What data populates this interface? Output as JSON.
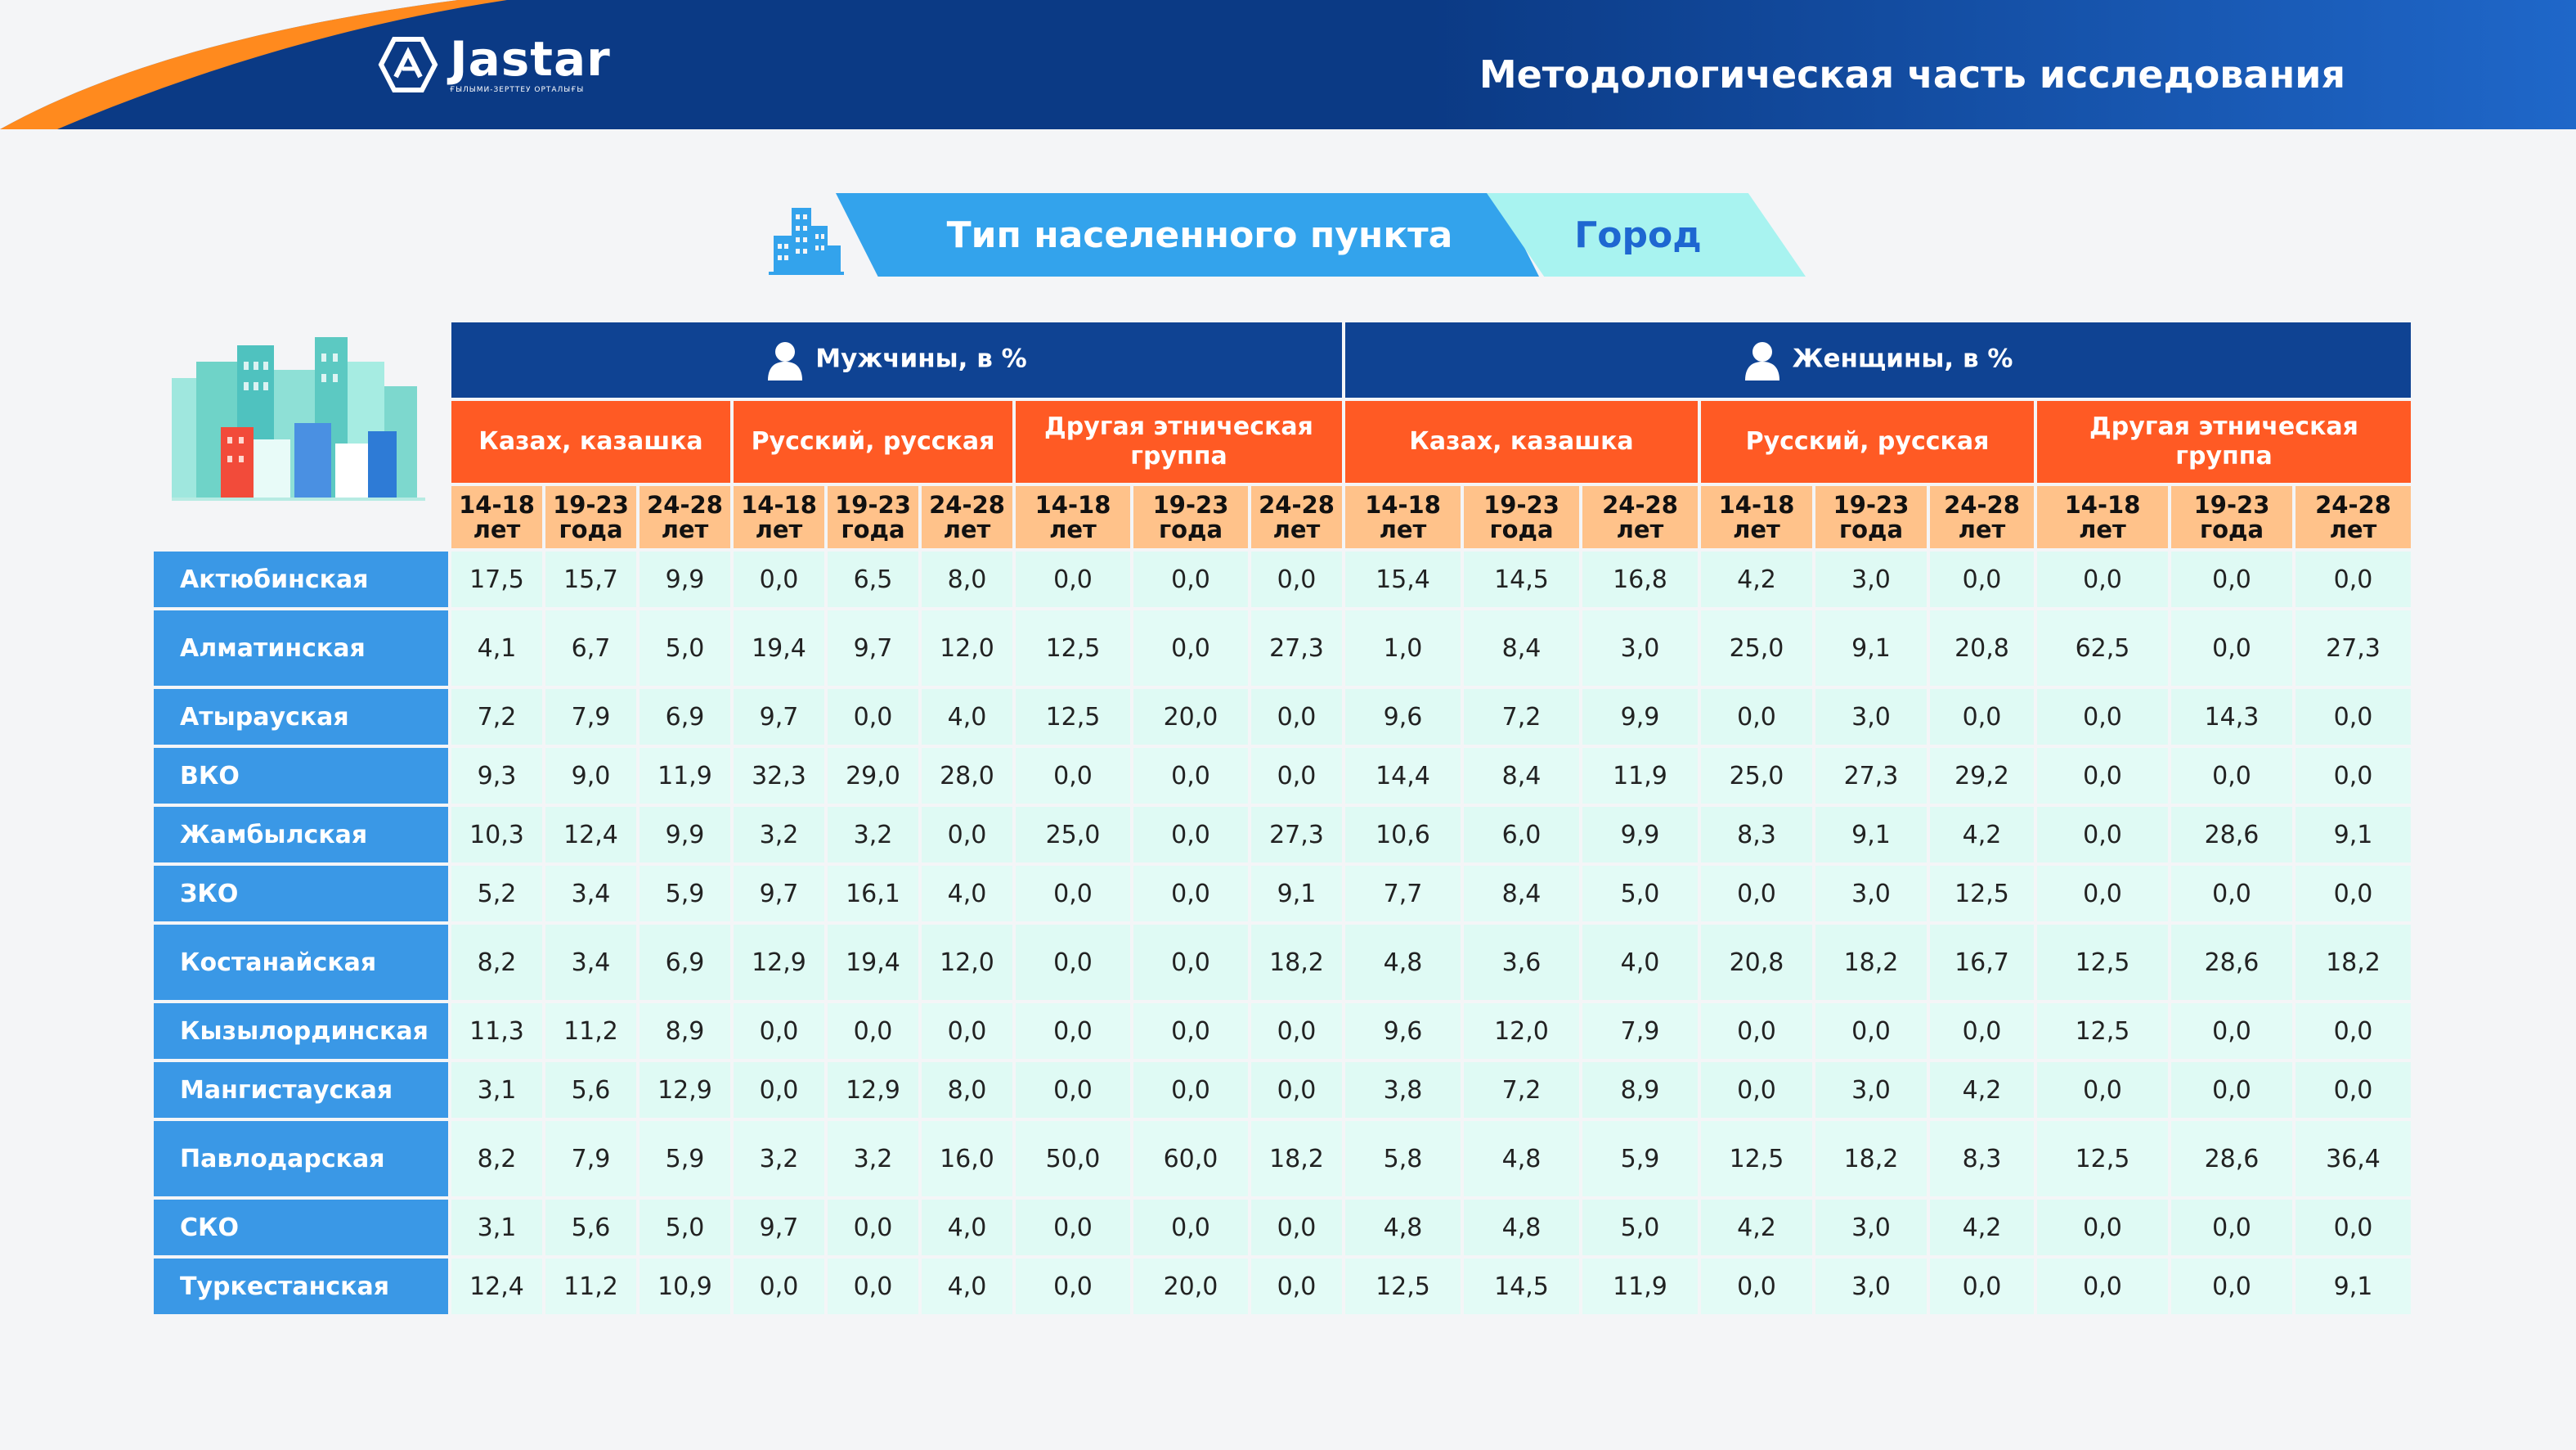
{
  "header": {
    "logo": "Jastar",
    "logo_sub": "ҒЫЛЫМИ-ЗЕРТТЕУ ОРТАЛЫҒЫ",
    "title": "Методологическая часть исследования"
  },
  "banner": {
    "label": "Тип населенного пункта",
    "value": "Город"
  },
  "table": {
    "genders": [
      "Мужчины, в %",
      "Женщины, в %"
    ],
    "ethnic_groups": [
      "Казах, казашка",
      "Русский, русская",
      "Другая этническая группа"
    ],
    "age_groups": [
      "14-18 лет",
      "19-23 года",
      "24-28 лет"
    ],
    "rows": [
      {
        "region": "Актюбинская",
        "values": [
          "17,5",
          "15,7",
          "9,9",
          "0,0",
          "6,5",
          "8,0",
          "0,0",
          "0,0",
          "0,0",
          "15,4",
          "14,5",
          "16,8",
          "4,2",
          "3,0",
          "0,0",
          "0,0",
          "0,0",
          "0,0"
        ]
      },
      {
        "region": "Алматинская",
        "values": [
          "4,1",
          "6,7",
          "5,0",
          "19,4",
          "9,7",
          "12,0",
          "12,5",
          "0,0",
          "27,3",
          "1,0",
          "8,4",
          "3,0",
          "25,0",
          "9,1",
          "20,8",
          "62,5",
          "0,0",
          "27,3"
        ]
      },
      {
        "region": "Атырауская",
        "values": [
          "7,2",
          "7,9",
          "6,9",
          "9,7",
          "0,0",
          "4,0",
          "12,5",
          "20,0",
          "0,0",
          "9,6",
          "7,2",
          "9,9",
          "0,0",
          "3,0",
          "0,0",
          "0,0",
          "14,3",
          "0,0"
        ]
      },
      {
        "region": "ВКО",
        "values": [
          "9,3",
          "9,0",
          "11,9",
          "32,3",
          "29,0",
          "28,0",
          "0,0",
          "0,0",
          "0,0",
          "14,4",
          "8,4",
          "11,9",
          "25,0",
          "27,3",
          "29,2",
          "0,0",
          "0,0",
          "0,0"
        ]
      },
      {
        "region": "Жамбылская",
        "values": [
          "10,3",
          "12,4",
          "9,9",
          "3,2",
          "3,2",
          "0,0",
          "25,0",
          "0,0",
          "27,3",
          "10,6",
          "6,0",
          "9,9",
          "8,3",
          "9,1",
          "4,2",
          "0,0",
          "28,6",
          "9,1"
        ]
      },
      {
        "region": "ЗКО",
        "values": [
          "5,2",
          "3,4",
          "5,9",
          "9,7",
          "16,1",
          "4,0",
          "0,0",
          "0,0",
          "9,1",
          "7,7",
          "8,4",
          "5,0",
          "0,0",
          "3,0",
          "12,5",
          "0,0",
          "0,0",
          "0,0"
        ]
      },
      {
        "region": "Костанайская",
        "values": [
          "8,2",
          "3,4",
          "6,9",
          "12,9",
          "19,4",
          "12,0",
          "0,0",
          "0,0",
          "18,2",
          "4,8",
          "3,6",
          "4,0",
          "20,8",
          "18,2",
          "16,7",
          "12,5",
          "28,6",
          "18,2"
        ]
      },
      {
        "region": "Кызылординская",
        "values": [
          "11,3",
          "11,2",
          "8,9",
          "0,0",
          "0,0",
          "0,0",
          "0,0",
          "0,0",
          "0,0",
          "9,6",
          "12,0",
          "7,9",
          "0,0",
          "0,0",
          "0,0",
          "12,5",
          "0,0",
          "0,0"
        ]
      },
      {
        "region": "Мангистауская",
        "values": [
          "3,1",
          "5,6",
          "12,9",
          "0,0",
          "12,9",
          "8,0",
          "0,0",
          "0,0",
          "0,0",
          "3,8",
          "7,2",
          "8,9",
          "0,0",
          "3,0",
          "4,2",
          "0,0",
          "0,0",
          "0,0"
        ]
      },
      {
        "region": "Павлодарская",
        "values": [
          "8,2",
          "7,9",
          "5,9",
          "3,2",
          "3,2",
          "16,0",
          "50,0",
          "60,0",
          "18,2",
          "5,8",
          "4,8",
          "5,9",
          "12,5",
          "18,2",
          "8,3",
          "12,5",
          "28,6",
          "36,4"
        ]
      },
      {
        "region": "СКО",
        "values": [
          "3,1",
          "5,6",
          "5,0",
          "9,7",
          "0,0",
          "4,0",
          "0,0",
          "0,0",
          "0,0",
          "4,8",
          "4,8",
          "5,0",
          "4,2",
          "3,0",
          "4,2",
          "0,0",
          "0,0",
          "0,0"
        ]
      },
      {
        "region": "Туркестанская",
        "values": [
          "12,4",
          "11,2",
          "10,9",
          "0,0",
          "0,0",
          "4,0",
          "0,0",
          "20,0",
          "0,0",
          "12,5",
          "14,5",
          "11,9",
          "0,0",
          "3,0",
          "0,0",
          "0,0",
          "0,0",
          "9,1"
        ]
      }
    ]
  },
  "colors": {
    "header_bg": "#0b3a85",
    "accent_orange": "#ff5a24",
    "age_bg": "#ffc28a",
    "region_bg": "#3a98e6",
    "cell_bg": "#dffaf4"
  }
}
